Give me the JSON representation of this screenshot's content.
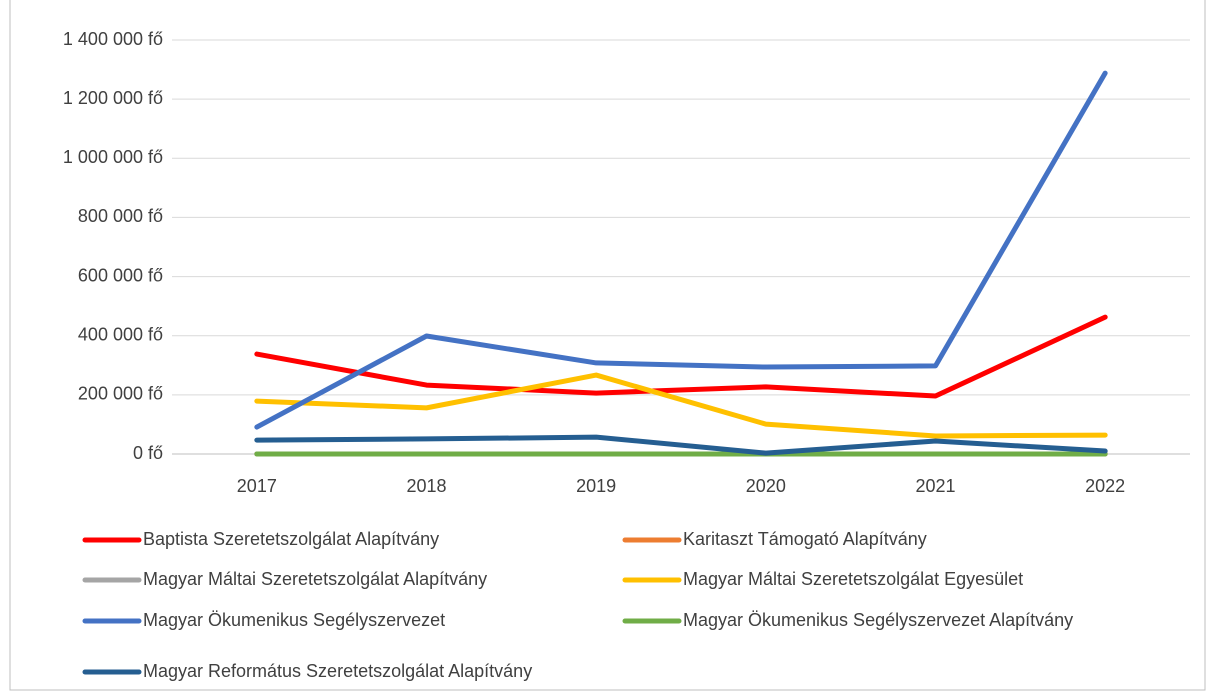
{
  "chart_data": {
    "type": "line",
    "categories": [
      "2017",
      "2018",
      "2019",
      "2020",
      "2021",
      "2022"
    ],
    "series": [
      {
        "name": "Baptista Szeretetszolgálat Alapítvány",
        "color": "#ff0000",
        "values": [
          338000,
          233000,
          206000,
          227000,
          196000,
          463000
        ]
      },
      {
        "name": "Karitaszt Támogató Alapítvány",
        "color": "#ed7d31",
        "values": [
          0,
          0,
          0,
          0,
          0,
          0
        ]
      },
      {
        "name": "Magyar Máltai Szeretetszolgálat Alapítvány",
        "color": "#a5a5a5",
        "values": [
          0,
          0,
          0,
          0,
          0,
          0
        ]
      },
      {
        "name": "Magyar Máltai Szeretetszolgálat Egyesület",
        "color": "#ffc000",
        "values": [
          179000,
          156000,
          267000,
          101000,
          61000,
          64000
        ]
      },
      {
        "name": "Magyar Ökumenikus Segélyszervezet",
        "color": "#4472c4",
        "values": [
          91000,
          399000,
          308000,
          294000,
          298000,
          1288000
        ]
      },
      {
        "name": "Magyar Ökumenikus Segélyszervezet Alapítvány",
        "color": "#70ad47",
        "values": [
          0,
          0,
          0,
          0,
          0,
          0
        ]
      },
      {
        "name": "Magyar Református Szeretetszolgálat Alapítvány",
        "color": "#255e91",
        "values": [
          47000,
          51000,
          57000,
          3000,
          44000,
          10000
        ]
      }
    ],
    "ylim": [
      0,
      1400000
    ],
    "yticks": [
      {
        "value": 0,
        "label": "0 fő"
      },
      {
        "value": 200000,
        "label": "200 000 fő"
      },
      {
        "value": 400000,
        "label": "400 000 fő"
      },
      {
        "value": 600000,
        "label": "600 000 fő"
      },
      {
        "value": 800000,
        "label": "800 000 fő"
      },
      {
        "value": 1000000,
        "label": "1 000 000 fő"
      },
      {
        "value": 1200000,
        "label": "1 200 000 fő"
      },
      {
        "value": 1400000,
        "label": "1 400 000 fő"
      }
    ],
    "grid": true
  }
}
